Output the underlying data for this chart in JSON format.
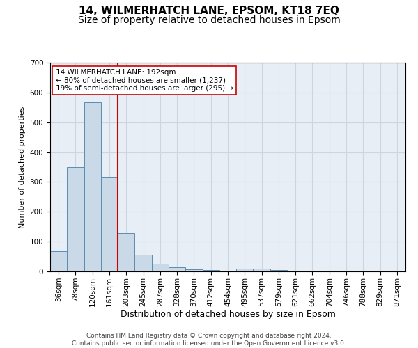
{
  "title_line1": "14, WILMERHATCH LANE, EPSOM, KT18 7EQ",
  "title_line2": "Size of property relative to detached houses in Epsom",
  "xlabel": "Distribution of detached houses by size in Epsom",
  "ylabel": "Number of detached properties",
  "bins": [
    "36sqm",
    "78sqm",
    "120sqm",
    "161sqm",
    "203sqm",
    "245sqm",
    "287sqm",
    "328sqm",
    "370sqm",
    "412sqm",
    "454sqm",
    "495sqm",
    "537sqm",
    "579sqm",
    "621sqm",
    "662sqm",
    "704sqm",
    "746sqm",
    "788sqm",
    "829sqm",
    "871sqm"
  ],
  "values": [
    68,
    350,
    568,
    315,
    128,
    57,
    25,
    13,
    7,
    5,
    0,
    10,
    10,
    5,
    2,
    2,
    2,
    1,
    1,
    1,
    1
  ],
  "bar_color": "#c9d9e8",
  "bar_edge_color": "#5b8db0",
  "bar_linewidth": 0.7,
  "vline_color": "#cc0000",
  "vline_linewidth": 1.5,
  "annotation_text": "14 WILMERHATCH LANE: 192sqm\n← 80% of detached houses are smaller (1,237)\n19% of semi-detached houses are larger (295) →",
  "annotation_box_color": "#ffffff",
  "annotation_box_edge": "#cc0000",
  "ylim": [
    0,
    700
  ],
  "yticks": [
    0,
    100,
    200,
    300,
    400,
    500,
    600,
    700
  ],
  "grid_color": "#cdd6e0",
  "background_color": "#e8eef5",
  "footer_text": "Contains HM Land Registry data © Crown copyright and database right 2024.\nContains public sector information licensed under the Open Government Licence v3.0.",
  "title_fontsize": 11,
  "subtitle_fontsize": 10,
  "xlabel_fontsize": 9,
  "ylabel_fontsize": 8,
  "tick_fontsize": 7.5,
  "footer_fontsize": 6.5,
  "annot_fontsize": 7.5
}
